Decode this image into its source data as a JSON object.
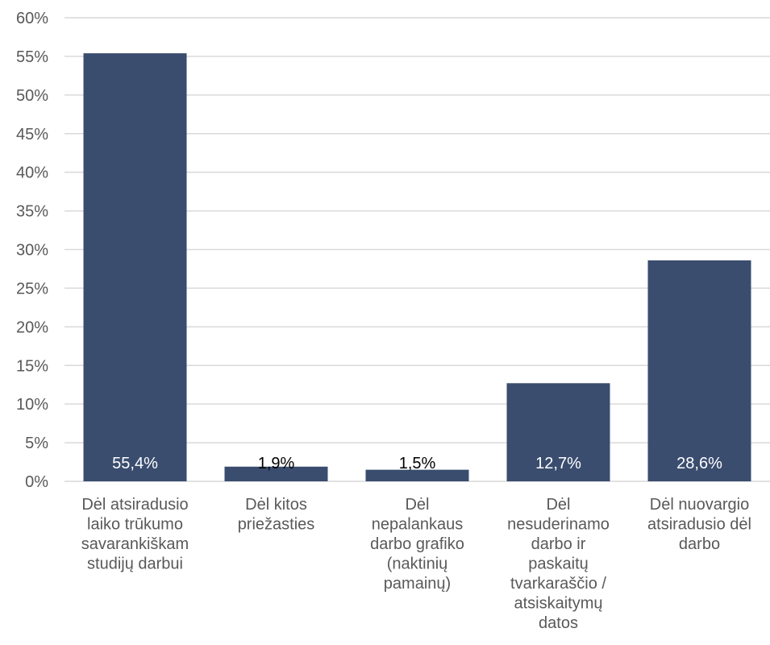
{
  "chart_data": {
    "type": "bar",
    "categories": [
      [
        "Dėl atsiradusio",
        "laiko trūkumo",
        "savarankiškam",
        "studijų darbui"
      ],
      [
        "Dėl kitos",
        "priežasties"
      ],
      [
        "Dėl",
        "nepalankaus",
        "darbo grafiko",
        "(naktinių",
        "pamainų)"
      ],
      [
        "Dėl",
        "nesuderinamo",
        "darbo ir",
        "paskaitų",
        "tvarkaraščio /",
        "atsiskaitymų",
        "datos"
      ],
      [
        "Dėl nuovargio",
        "atsiradusio dėl",
        "darbo"
      ]
    ],
    "values": [
      55.4,
      1.9,
      1.5,
      12.7,
      28.6
    ],
    "data_labels": [
      "55,4%",
      "1,9%",
      "1,5%",
      "12,7%",
      "28,6%"
    ],
    "ylim": [
      0,
      60
    ],
    "yticks": [
      "0%",
      "5%",
      "10%",
      "15%",
      "20%",
      "25%",
      "30%",
      "35%",
      "40%",
      "45%",
      "50%",
      "55%",
      "60%"
    ],
    "grid": true,
    "colors": {
      "bar": "#3a4d6f",
      "gridline": "#d9d9d9",
      "axis_text": "#595959",
      "label_inside": "#ffffff",
      "label_above": "#000000"
    }
  }
}
